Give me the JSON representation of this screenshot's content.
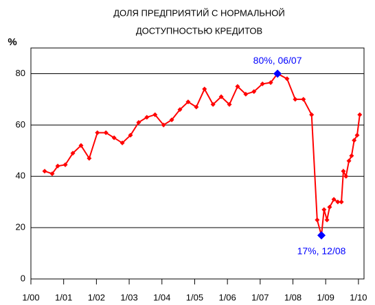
{
  "chart_data": {
    "type": "line",
    "title": [
      "ДОЛЯ ПРЕДПРИЯТИЙ С НОРМАЛЬНОЙ",
      "ДОСТУПНОСТЬЮ КРЕДИТОВ"
    ],
    "y_label": "%",
    "x": [
      2000.42,
      2000.65,
      2000.82,
      2001.05,
      2001.28,
      2001.53,
      2001.78,
      2002.03,
      2002.29,
      2002.54,
      2002.79,
      2003.04,
      2003.29,
      2003.54,
      2003.79,
      2004.05,
      2004.3,
      2004.55,
      2004.8,
      2005.05,
      2005.3,
      2005.56,
      2005.81,
      2006.06,
      2006.31,
      2006.56,
      2006.81,
      2007.07,
      2007.32,
      2007.53,
      2007.82,
      2008.07,
      2008.32,
      2008.57,
      2008.74,
      2008.87,
      2008.95,
      2009.04,
      2009.12,
      2009.25,
      2009.37,
      2009.48,
      2009.54,
      2009.62,
      2009.71,
      2009.79,
      2009.87,
      2009.96,
      2010.04
    ],
    "series": [
      {
        "name": "доля",
        "color": "#ff0000",
        "values": [
          42,
          41,
          44,
          44.5,
          49,
          52,
          47,
          57,
          57,
          55,
          53,
          56,
          61,
          63,
          64,
          60,
          62,
          66,
          69,
          67,
          74,
          68,
          71,
          68,
          75,
          72,
          73,
          76,
          76.5,
          80,
          78,
          70,
          70,
          64,
          23,
          17,
          27,
          23,
          28,
          31,
          30,
          30,
          42,
          40,
          46,
          48,
          54,
          56,
          64
        ]
      }
    ],
    "annotations": [
      {
        "text": "80%, 06/07",
        "x": 2007.53,
        "y": 80,
        "color": "#0000ff"
      },
      {
        "text": "17%, 12/08",
        "x": 2008.87,
        "y": 17,
        "color": "#0000ff"
      }
    ],
    "xlim": [
      2000,
      2010.17
    ],
    "xticks": [
      {
        "value": 2000,
        "label": "1/00"
      },
      {
        "value": 2001,
        "label": "1/01"
      },
      {
        "value": 2002,
        "label": "1/02"
      },
      {
        "value": 2003,
        "label": "1/03"
      },
      {
        "value": 2004,
        "label": "1/04"
      },
      {
        "value": 2005,
        "label": "1/05"
      },
      {
        "value": 2006,
        "label": "1/06"
      },
      {
        "value": 2007,
        "label": "1/07"
      },
      {
        "value": 2008,
        "label": "1/08"
      },
      {
        "value": 2009,
        "label": "1/09"
      },
      {
        "value": 2010,
        "label": "1/10"
      }
    ],
    "ylim": [
      0,
      90
    ],
    "yticks": [
      0,
      20,
      40,
      60,
      80
    ],
    "grid": true
  }
}
